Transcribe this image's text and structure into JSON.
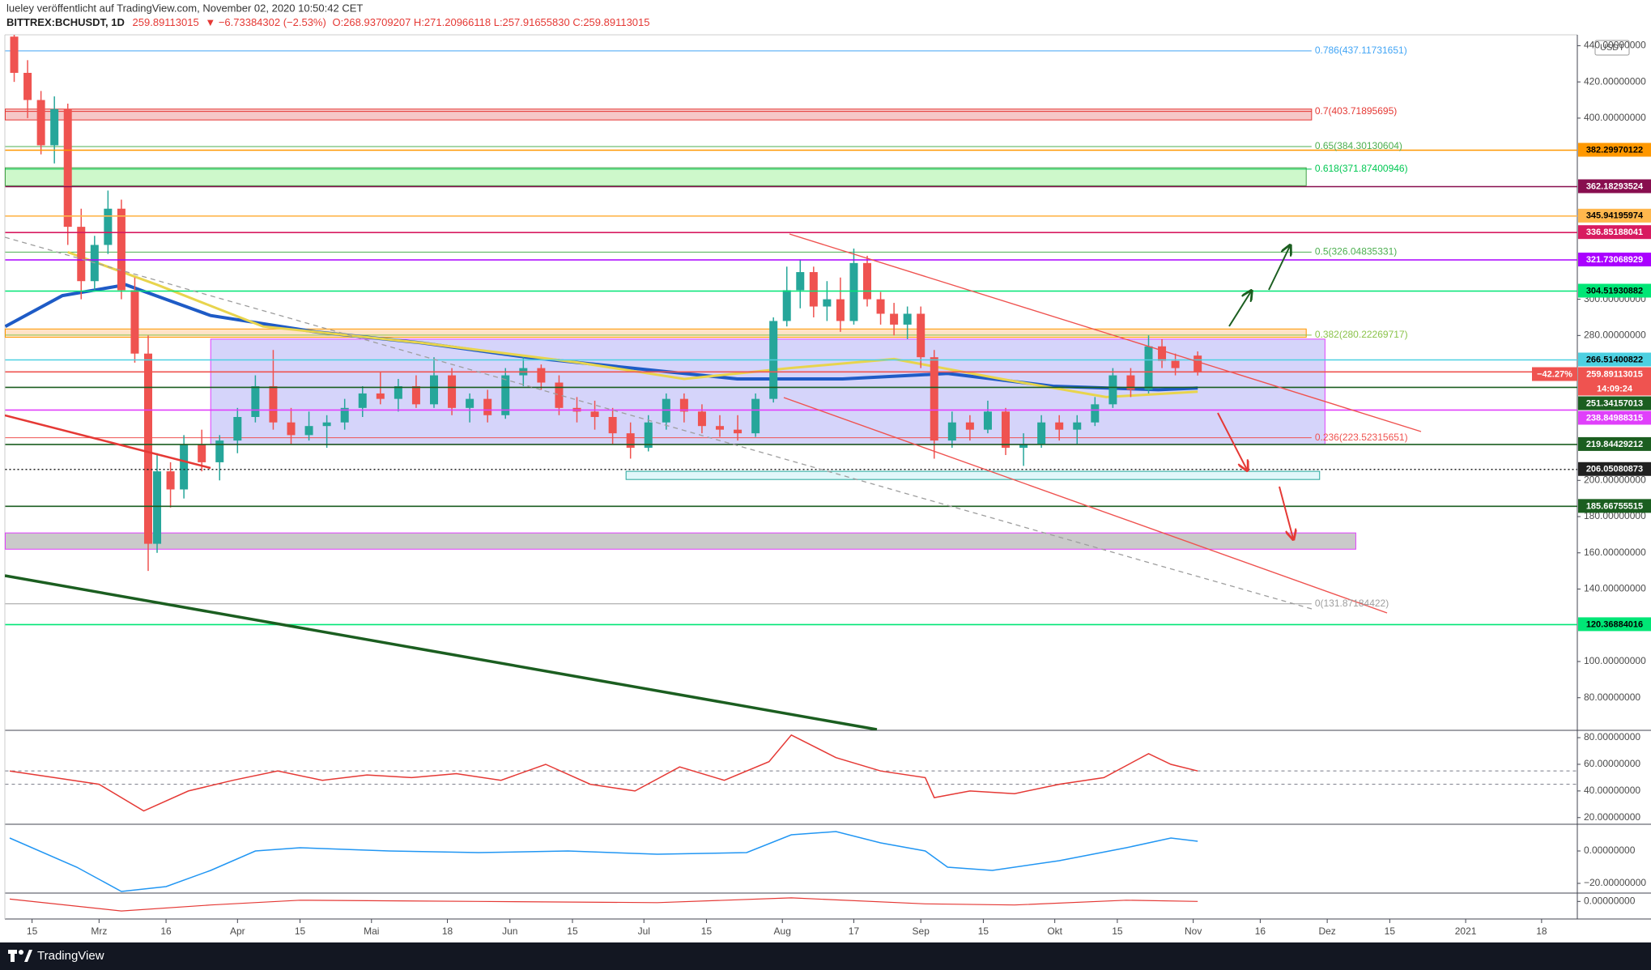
{
  "header": {
    "author": "lueley veröffentlicht auf TradingView.com, November 02, 2020 10:50:42 CET",
    "symbol": "BITTREX:BCHUSDT, 1D",
    "price": "259.89113015",
    "change": "▼ −6.73384302 (−2.53%)",
    "ohlc": "O:268.93709207 H:271.20966118 L:257.91655830 C:259.89113015",
    "currency": "USDT"
  },
  "footer": {
    "brand": "TradingView"
  },
  "chart_data": [
    {
      "type": "candlestick",
      "up_color": "#26a69a",
      "down_color": "#ef5350",
      "x": [
        -4,
        -1,
        2,
        5,
        8,
        11,
        14,
        17,
        20,
        23,
        26,
        28,
        31,
        34,
        38,
        42,
        46,
        50,
        54,
        58,
        62,
        66,
        70,
        74,
        78,
        82,
        86,
        90,
        94,
        98,
        102,
        106,
        110,
        114,
        118,
        122,
        126,
        130,
        134,
        138,
        142,
        146,
        150,
        154,
        158,
        162,
        166,
        169,
        172,
        175,
        178,
        181,
        184,
        187,
        190,
        193,
        196,
        199,
        202,
        206,
        210,
        214,
        218,
        222,
        226,
        230,
        234,
        238,
        242,
        246,
        250,
        253,
        256,
        261
      ],
      "open": [
        445,
        425,
        410,
        385,
        405,
        340,
        310,
        330,
        350,
        305,
        270,
        165,
        205,
        195,
        220,
        210,
        222,
        235,
        252,
        232,
        225,
        230,
        232,
        240,
        248,
        245,
        252,
        242,
        258,
        240,
        245,
        236,
        258,
        262,
        254,
        240,
        238,
        235,
        226,
        218,
        232,
        245,
        238,
        230,
        228,
        226,
        245,
        288,
        305,
        315,
        296,
        300,
        288,
        320,
        300,
        292,
        286,
        292,
        268,
        222,
        232,
        228,
        238,
        218,
        220,
        232,
        228,
        232,
        242,
        258,
        250,
        274,
        266,
        268.9
      ],
      "high": [
        448,
        432,
        415,
        412,
        408,
        350,
        335,
        360,
        355,
        312,
        280,
        215,
        210,
        225,
        228,
        225,
        240,
        258,
        272,
        240,
        238,
        236,
        245,
        252,
        260,
        256,
        258,
        268,
        262,
        248,
        250,
        262,
        268,
        264,
        258,
        246,
        244,
        240,
        232,
        236,
        248,
        248,
        242,
        236,
        236,
        248,
        290,
        318,
        322,
        318,
        310,
        312,
        328,
        324,
        304,
        298,
        296,
        296,
        272,
        238,
        236,
        244,
        240,
        226,
        236,
        236,
        236,
        246,
        262,
        262,
        280,
        278,
        270,
        271.2
      ],
      "low": [
        420,
        400,
        380,
        375,
        330,
        300,
        305,
        325,
        300,
        265,
        150,
        160,
        185,
        190,
        205,
        200,
        215,
        232,
        228,
        220,
        222,
        218,
        228,
        235,
        242,
        238,
        240,
        240,
        236,
        232,
        232,
        234,
        252,
        250,
        236,
        232,
        228,
        220,
        212,
        216,
        228,
        232,
        226,
        224,
        222,
        224,
        243,
        285,
        295,
        290,
        288,
        282,
        286,
        296,
        286,
        280,
        278,
        262,
        212,
        218,
        222,
        226,
        214,
        208,
        218,
        222,
        220,
        230,
        240,
        246,
        248,
        262,
        258,
        257.9
      ],
      "close": [
        425,
        410,
        385,
        405,
        340,
        310,
        330,
        350,
        305,
        270,
        165,
        205,
        195,
        220,
        210,
        222,
        235,
        252,
        232,
        225,
        230,
        232,
        240,
        248,
        245,
        252,
        242,
        258,
        240,
        245,
        236,
        258,
        262,
        254,
        240,
        238,
        235,
        226,
        218,
        232,
        245,
        238,
        230,
        228,
        226,
        245,
        288,
        305,
        315,
        296,
        300,
        288,
        320,
        300,
        292,
        286,
        292,
        268,
        222,
        232,
        228,
        238,
        218,
        220,
        232,
        228,
        232,
        242,
        258,
        250,
        274,
        266,
        262,
        259.9
      ],
      "series": [
        {
          "color": "#1e5bc6",
          "width": 4,
          "x": [
            -6,
            6.8,
            21,
            40,
            63.5,
            87,
            110.7,
            134.3,
            157.9,
            181.5,
            205,
            228.6,
            252.2,
            261
          ],
          "values": [
            285,
            302,
            308,
            291,
            282,
            276,
            268,
            262,
            256,
            256,
            259,
            252,
            250,
            251
          ]
        },
        {
          "color": "#e8d44d",
          "width": 3,
          "x": [
            8,
            28,
            51.7,
            87,
            122.5,
            146,
            169.7,
            193,
            217,
            240.5,
            261
          ],
          "values": [
            326,
            308,
            285,
            276,
            265,
            256,
            262,
            267,
            256,
            246,
            249
          ]
        }
      ],
      "xlim": [
        -6,
        346
      ],
      "xticks": [
        {
          "value": 0,
          "label": "15"
        },
        {
          "value": 15,
          "label": "Mrz"
        },
        {
          "value": 30,
          "label": "16"
        },
        {
          "value": 46,
          "label": "Apr"
        },
        {
          "value": 60,
          "label": "15"
        },
        {
          "value": 76,
          "label": "Mai"
        },
        {
          "value": 93,
          "label": "18"
        },
        {
          "value": 107,
          "label": "Jun"
        },
        {
          "value": 121,
          "label": "15"
        },
        {
          "value": 137,
          "label": "Jul"
        },
        {
          "value": 151,
          "label": "15"
        },
        {
          "value": 168,
          "label": "Aug"
        },
        {
          "value": 184,
          "label": "17"
        },
        {
          "value": 199,
          "label": "Sep"
        },
        {
          "value": 213,
          "label": "15"
        },
        {
          "value": 229,
          "label": "Okt"
        },
        {
          "value": 243,
          "label": "15"
        },
        {
          "value": 260,
          "label": "Nov"
        },
        {
          "value": 275,
          "label": "16"
        },
        {
          "value": 290,
          "label": "Dez"
        },
        {
          "value": 304,
          "label": "15"
        },
        {
          "value": 321,
          "label": "2021"
        },
        {
          "value": 338,
          "label": "18"
        }
      ],
      "ylim": [
        62,
        446
      ],
      "yticks": [
        {
          "value": 440,
          "label": "440.00000000"
        },
        {
          "value": 420,
          "label": "420.00000000"
        },
        {
          "value": 400,
          "label": "400.00000000"
        },
        {
          "value": 300,
          "label": "300.00000000"
        },
        {
          "value": 280,
          "label": "280.00000000"
        },
        {
          "value": 200,
          "label": "200.00000000"
        },
        {
          "value": 180,
          "label": "180.00000000"
        },
        {
          "value": 160,
          "label": "160.00000000"
        },
        {
          "value": 140,
          "label": "140.00000000"
        },
        {
          "value": 100,
          "label": "100.00000000"
        },
        {
          "value": 80,
          "label": "80.00000000"
        }
      ],
      "zones": [
        {
          "from": 399,
          "to": 405,
          "x": [
            -6,
            286.5
          ],
          "color": "#e53935",
          "fill": "#ef9a9a"
        },
        {
          "from": 362.7,
          "to": 372.6,
          "x": [
            -6,
            285.3
          ],
          "color": "#43a047",
          "fill": "#a5f3a0"
        },
        {
          "from": 279,
          "to": 283.6,
          "x": [
            -6,
            285.3
          ],
          "color": "#ff9800",
          "fill": "#ffcc99"
        },
        {
          "from": 220,
          "to": 278,
          "x": [
            40,
            289.5
          ],
          "color": "#e040fb",
          "fill": "#b3b0f5"
        },
        {
          "from": 200.5,
          "to": 205,
          "x": [
            133,
            288.3
          ],
          "color": "#26a69a",
          "fill": "#c8f0f5"
        },
        {
          "from": 162,
          "to": 171,
          "x": [
            -6,
            296.4
          ],
          "color": "#e040fb",
          "fill": "#9e9e9e"
        }
      ],
      "fib": [
        {
          "label": "0.786(437.11731651)",
          "value": 437.11731651,
          "color": "#42a5f5"
        },
        {
          "label": "0.7(403.71895695)",
          "value": 403.71895695,
          "color": "#e53935"
        },
        {
          "label": "0.65(384.30130604)",
          "value": 384.30130604,
          "color": "#4caf50"
        },
        {
          "label": "0.618(371.87400946)",
          "value": 371.87400946,
          "color": "#00c853"
        },
        {
          "label": "0.5(326.04835331)",
          "value": 326.04835331,
          "color": "#4caf50"
        },
        {
          "label": "0.382(280.22269717)",
          "value": 280.22269717,
          "color": "#8bc34a"
        },
        {
          "label": "0.236(223.52315651)",
          "value": 223.52315651,
          "color": "#ef5350"
        },
        {
          "label": "0(131.87184422)",
          "value": 131.87184422,
          "color": "#9e9e9e"
        }
      ],
      "price_labels": [
        {
          "value": 382.29970122,
          "color": "#ff9800",
          "text_color": "#000"
        },
        {
          "value": 362.18293524,
          "color": "#880e4f",
          "text_color": "#fff"
        },
        {
          "value": 345.94195974,
          "color": "#ffb74d",
          "text_color": "#000"
        },
        {
          "value": 336.85188041,
          "color": "#d81b60",
          "text_color": "#fff"
        },
        {
          "value": 321.73068929,
          "color": "#aa00ff",
          "text_color": "#fff"
        },
        {
          "value": 304.51930882,
          "color": "#00e676",
          "text_color": "#000"
        },
        {
          "value": 266.51400822,
          "color": "#4dd0e1",
          "text_color": "#000"
        },
        {
          "value": 259.89113015,
          "color": "#ef5350",
          "text_color": "#fff",
          "percent": "−42.27%",
          "countdown": "14:09:24"
        },
        {
          "value": 251.34157013,
          "color": "#1b5e20",
          "text_color": "#fff"
        },
        {
          "value": 238.84988315,
          "color": "#e040fb",
          "text_color": "#fff"
        },
        {
          "value": 219.84429212,
          "color": "#1b5e20",
          "text_color": "#fff"
        },
        {
          "value": 206.05080873,
          "color": "#212121",
          "text_color": "#fff",
          "dash": true
        },
        {
          "value": 185.66755515,
          "color": "#1b5e20",
          "text_color": "#fff"
        },
        {
          "value": 120.36884016,
          "color": "#00e676",
          "text_color": "#000"
        }
      ]
    },
    {
      "type": "line",
      "ylim": [
        15,
        85.5
      ],
      "yticks": [
        {
          "value": 80,
          "label": "80.00000000"
        },
        {
          "value": 60,
          "label": "60.00000000"
        },
        {
          "value": 40,
          "label": "40.00000000"
        },
        {
          "value": 20,
          "label": "20.00000000"
        }
      ],
      "levels": [
        55,
        45
      ],
      "series": [
        {
          "color": "#e53935",
          "width": 1.5,
          "x": [
            -5,
            5,
            15,
            25,
            35,
            45,
            55,
            65,
            75,
            85,
            95,
            105,
            115,
            125,
            135,
            145,
            155,
            165,
            170,
            180,
            190,
            200,
            202,
            210,
            220,
            230,
            240,
            250,
            255,
            261
          ],
          "values": [
            55,
            50,
            45,
            25,
            40,
            48,
            55,
            48,
            52,
            50,
            53,
            48,
            60,
            45,
            40,
            58,
            48,
            62,
            82,
            65,
            55,
            50,
            35,
            40,
            38,
            45,
            50,
            68,
            60,
            55
          ]
        }
      ]
    },
    {
      "type": "line",
      "ylim": [
        -26,
        16.5
      ],
      "yticks": [
        {
          "value": 0,
          "label": "0.00000000"
        },
        {
          "value": -20,
          "label": "−20.00000000"
        }
      ],
      "series": [
        {
          "color": "#2196f3",
          "width": 1.5,
          "x": [
            -5,
            10,
            20,
            30,
            40,
            50,
            60,
            80,
            100,
            120,
            140,
            160,
            170,
            180,
            190,
            200,
            205,
            215,
            230,
            245,
            255,
            261
          ],
          "values": [
            8,
            -10,
            -25,
            -22,
            -12,
            0,
            2,
            0,
            -1,
            0,
            -2,
            -1,
            10,
            12,
            5,
            0,
            -10,
            -12,
            -6,
            2,
            8,
            6
          ]
        }
      ]
    },
    {
      "type": "line",
      "ylim": [
        -12,
        7
      ],
      "yticks": [
        {
          "value": 0,
          "label": "0.00000000"
        }
      ],
      "series": [
        {
          "color": "#e53935",
          "width": 1.2,
          "x": [
            -5,
            20,
            40,
            60,
            100,
            140,
            170,
            200,
            220,
            245,
            261
          ],
          "values": [
            2,
            -8,
            -3,
            1,
            0,
            -1,
            3,
            -2,
            -3,
            1,
            0
          ]
        }
      ]
    }
  ]
}
